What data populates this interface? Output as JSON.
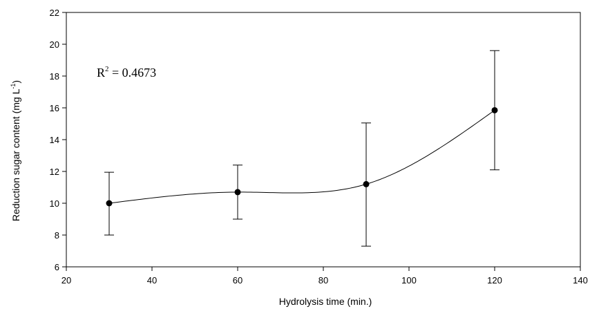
{
  "chart_data": {
    "type": "scatter",
    "xlabel": "Hydrolysis time (min.)",
    "ylabel_main": "Reduction sugar content (mg L",
    "ylabel_sup": "-1",
    "ylabel_close": ")",
    "xlim": [
      20,
      140
    ],
    "ylim": [
      6,
      22
    ],
    "x_ticks": [
      20,
      40,
      60,
      80,
      100,
      120,
      140
    ],
    "y_ticks": [
      6,
      8,
      10,
      12,
      14,
      16,
      18,
      20,
      22
    ],
    "x_tick_labels": [
      "20",
      "40",
      "60",
      "80",
      "100",
      "120",
      "140"
    ],
    "y_tick_labels": [
      "6",
      "8",
      "10",
      "12",
      "14",
      "16",
      "18",
      "20",
      "22"
    ],
    "points": [
      {
        "x": 30,
        "y": 10.0,
        "err_low": 8.0,
        "err_high": 11.95
      },
      {
        "x": 60,
        "y": 10.7,
        "err_low": 9.0,
        "err_high": 12.4
      },
      {
        "x": 90,
        "y": 11.2,
        "err_low": 7.3,
        "err_high": 15.05
      },
      {
        "x": 120,
        "y": 15.85,
        "err_low": 12.1,
        "err_high": 19.6
      }
    ],
    "fit_curve": "cubic spline through points",
    "annotation": {
      "prefix": "R",
      "sup": "2",
      "suffix": " = 0.4673"
    },
    "grid": false,
    "legend": "none"
  }
}
